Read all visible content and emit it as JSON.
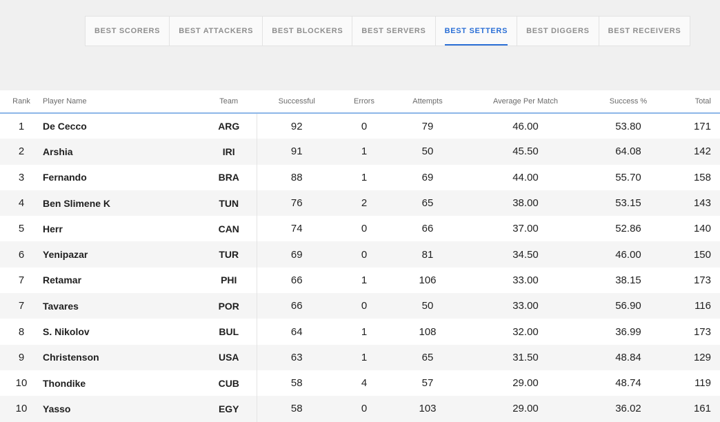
{
  "tabs": [
    {
      "label": "BEST SCORERS",
      "active": false
    },
    {
      "label": "BEST ATTACKERS",
      "active": false
    },
    {
      "label": "BEST BLOCKERS",
      "active": false
    },
    {
      "label": "BEST SERVERS",
      "active": false
    },
    {
      "label": "BEST SETTERS",
      "active": true
    },
    {
      "label": "BEST DIGGERS",
      "active": false
    },
    {
      "label": "BEST RECEIVERS",
      "active": false
    }
  ],
  "table": {
    "headers": {
      "rank": "Rank",
      "player": "Player Name",
      "team": "Team",
      "successful": "Successful",
      "errors": "Errors",
      "attempts": "Attempts",
      "avg": "Average Per Match",
      "success_pct": "Success %",
      "total": "Total"
    },
    "rows": [
      {
        "rank": "1",
        "player": "De Cecco",
        "team": "ARG",
        "successful": "92",
        "errors": "0",
        "attempts": "79",
        "avg": "46.00",
        "success_pct": "53.80",
        "total": "171"
      },
      {
        "rank": "2",
        "player": "Arshia",
        "team": "IRI",
        "successful": "91",
        "errors": "1",
        "attempts": "50",
        "avg": "45.50",
        "success_pct": "64.08",
        "total": "142"
      },
      {
        "rank": "3",
        "player": "Fernando",
        "team": "BRA",
        "successful": "88",
        "errors": "1",
        "attempts": "69",
        "avg": "44.00",
        "success_pct": "55.70",
        "total": "158"
      },
      {
        "rank": "4",
        "player": "Ben Slimene K",
        "team": "TUN",
        "successful": "76",
        "errors": "2",
        "attempts": "65",
        "avg": "38.00",
        "success_pct": "53.15",
        "total": "143"
      },
      {
        "rank": "5",
        "player": "Herr",
        "team": "CAN",
        "successful": "74",
        "errors": "0",
        "attempts": "66",
        "avg": "37.00",
        "success_pct": "52.86",
        "total": "140"
      },
      {
        "rank": "6",
        "player": "Yenipazar",
        "team": "TUR",
        "successful": "69",
        "errors": "0",
        "attempts": "81",
        "avg": "34.50",
        "success_pct": "46.00",
        "total": "150"
      },
      {
        "rank": "7",
        "player": "Retamar",
        "team": "PHI",
        "successful": "66",
        "errors": "1",
        "attempts": "106",
        "avg": "33.00",
        "success_pct": "38.15",
        "total": "173"
      },
      {
        "rank": "7",
        "player": "Tavares",
        "team": "POR",
        "successful": "66",
        "errors": "0",
        "attempts": "50",
        "avg": "33.00",
        "success_pct": "56.90",
        "total": "116"
      },
      {
        "rank": "8",
        "player": "S. Nikolov",
        "team": "BUL",
        "successful": "64",
        "errors": "1",
        "attempts": "108",
        "avg": "32.00",
        "success_pct": "36.99",
        "total": "173"
      },
      {
        "rank": "9",
        "player": "Christenson",
        "team": "USA",
        "successful": "63",
        "errors": "1",
        "attempts": "65",
        "avg": "31.50",
        "success_pct": "48.84",
        "total": "129"
      },
      {
        "rank": "10",
        "player": "Thondike",
        "team": "CUB",
        "successful": "58",
        "errors": "4",
        "attempts": "57",
        "avg": "29.00",
        "success_pct": "48.74",
        "total": "119"
      },
      {
        "rank": "10",
        "player": "Yasso",
        "team": "EGY",
        "successful": "58",
        "errors": "0",
        "attempts": "103",
        "avg": "29.00",
        "success_pct": "36.02",
        "total": "161"
      }
    ]
  },
  "colors": {
    "accent": "#2a6fd6",
    "header_rule": "#8cb6e8",
    "page_bg": "#f0f0f0"
  }
}
